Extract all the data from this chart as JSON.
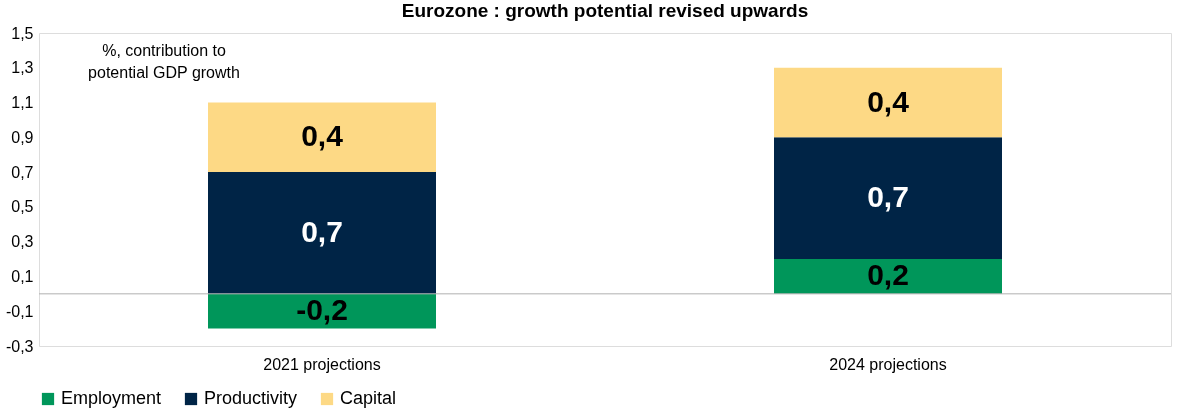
{
  "chart_data": {
    "type": "bar",
    "stacked": true,
    "title": "Eurozone : growth potential revised upwards",
    "categories": [
      "2021 projections",
      "2024 projections"
    ],
    "series": [
      {
        "name": "Employment",
        "color": "#00965a",
        "values": [
          -0.2,
          0.2
        ],
        "value_labels": [
          "-0,2",
          "0,2"
        ]
      },
      {
        "name": "Productivity",
        "color": "#002446",
        "values": [
          0.7,
          0.7
        ],
        "value_labels": [
          "0,7",
          "0,7"
        ]
      },
      {
        "name": "Capital",
        "color": "#fdd985",
        "values": [
          0.4,
          0.4
        ],
        "value_labels": [
          "0,4",
          "0,4"
        ]
      }
    ],
    "ylim": [
      -0.3,
      1.5
    ],
    "yticks": [
      {
        "value": -0.3,
        "label": "-0,3"
      },
      {
        "value": -0.1,
        "label": "-0,1"
      },
      {
        "value": 0.1,
        "label": "0,1"
      },
      {
        "value": 0.3,
        "label": "0,3"
      },
      {
        "value": 0.5,
        "label": "0,5"
      },
      {
        "value": 0.7,
        "label": "0,7"
      },
      {
        "value": 0.9,
        "label": "0,9"
      },
      {
        "value": 1.1,
        "label": "1,1"
      },
      {
        "value": 1.3,
        "label": "1,3"
      },
      {
        "value": 1.5,
        "label": "1,5"
      }
    ],
    "ref_lines": [
      {
        "axis": "y",
        "value": 0
      }
    ],
    "annotations": [
      "%, contribution to potential GDP growth"
    ],
    "grid": false,
    "legend": "bottom"
  }
}
